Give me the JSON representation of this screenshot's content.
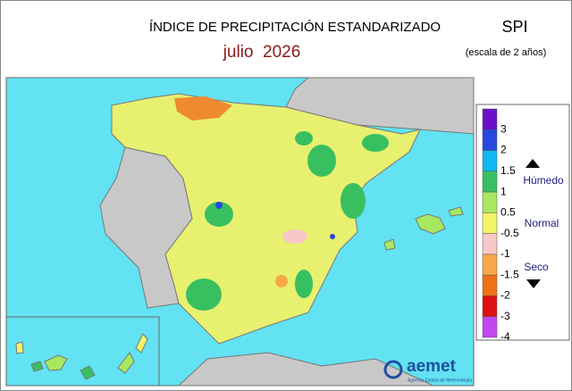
{
  "header": {
    "title": "ÍNDICE DE PRECIPITACIÓN ESTANDARIZADO",
    "period": "julio  2026",
    "index": "SPI",
    "scale": "(escala de 2 años)"
  },
  "legend": {
    "ticks": [
      3,
      2,
      1.5,
      1,
      0.5,
      -0.5,
      -1,
      -1.5,
      -2,
      -3,
      -4
    ],
    "colors": [
      "#6a10c8",
      "#2848e0",
      "#10b8f0",
      "#38c060",
      "#a8e860",
      "#f4f468",
      "#f8c8c8",
      "#f8a848",
      "#f07018",
      "#e01010",
      "#c048f0"
    ],
    "labels": [
      "Húmedo",
      "Normal",
      "Seco"
    ]
  },
  "logo": {
    "name": "aemet",
    "tagline": "Agencia Estatal de Meteorología"
  }
}
